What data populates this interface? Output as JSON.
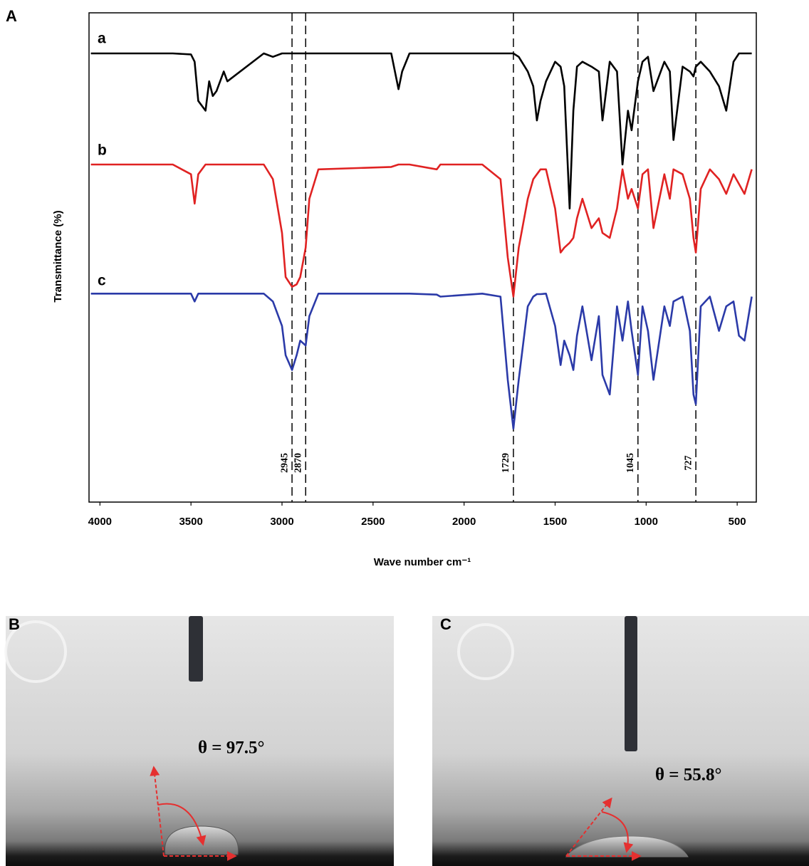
{
  "chart_data": {
    "type": "line",
    "panel_label": "A",
    "xlabel": "Wave number cm⁻¹",
    "ylabel": "Transmittance (%)",
    "xlim": [
      4060,
      395
    ],
    "ylim": [
      0,
      100
    ],
    "xticks": [
      4000,
      3500,
      3000,
      2500,
      2000,
      1500,
      1000,
      500
    ],
    "marker_lines": [
      2945,
      2870,
      1729,
      1045,
      727
    ],
    "x": [
      4050,
      3600,
      3500,
      3480,
      3460,
      3420,
      3400,
      3380,
      3360,
      3320,
      3300,
      3100,
      3050,
      3000,
      2980,
      2945,
      2920,
      2900,
      2870,
      2850,
      2800,
      2400,
      2360,
      2340,
      2300,
      2150,
      2130,
      1900,
      1800,
      1760,
      1729,
      1700,
      1650,
      1620,
      1600,
      1580,
      1550,
      1500,
      1470,
      1450,
      1420,
      1400,
      1380,
      1350,
      1300,
      1260,
      1240,
      1200,
      1160,
      1130,
      1100,
      1080,
      1045,
      1020,
      990,
      960,
      900,
      870,
      850,
      800,
      760,
      740,
      727,
      700,
      650,
      600,
      560,
      520,
      490,
      460,
      420
    ],
    "series": [
      {
        "name": "a",
        "color": "#000000",
        "values": [
          91.7,
          91.7,
          91.5,
          90,
          82,
          80,
          86,
          83,
          84,
          88,
          86,
          91.7,
          91,
          91.7,
          91.7,
          91.7,
          91.7,
          91.7,
          91.7,
          91.7,
          91.7,
          91.7,
          84.4,
          88,
          91.7,
          91.7,
          91.7,
          91.7,
          91.7,
          91.7,
          91.7,
          91,
          88,
          85,
          78,
          82,
          86,
          90,
          89,
          85,
          60,
          80,
          89,
          90,
          89,
          88,
          78,
          90,
          88,
          69,
          80,
          76,
          86,
          90,
          91,
          84,
          90,
          88,
          74,
          89,
          88,
          87,
          89,
          90,
          88,
          85,
          80,
          90,
          91.7,
          91.7,
          91.7
        ]
      },
      {
        "name": "b",
        "color": "#e02222",
        "values": [
          69,
          69,
          67,
          61,
          67,
          69,
          69,
          69,
          69,
          69,
          69,
          69,
          66,
          55,
          46,
          44,
          44.5,
          46,
          52,
          62,
          68,
          68.5,
          69,
          69,
          69,
          68,
          69,
          69,
          66,
          50,
          42,
          52,
          62,
          66,
          67,
          68,
          68,
          60,
          51,
          52,
          53,
          54,
          58,
          62,
          56,
          58,
          55,
          54,
          60,
          68,
          62,
          64,
          60,
          67,
          68,
          56,
          67,
          62,
          68,
          67,
          62,
          54,
          51,
          64,
          68,
          66,
          63,
          67,
          65,
          63,
          68
        ]
      },
      {
        "name": "c",
        "color": "#2b3aa8",
        "values": [
          42.6,
          42.6,
          42.6,
          41,
          42.6,
          42.6,
          42.6,
          42.6,
          42.6,
          42.6,
          42.6,
          42.6,
          41,
          36,
          30,
          27,
          30,
          33,
          32,
          38,
          42.6,
          42.6,
          42.6,
          42.6,
          42.6,
          42.4,
          42,
          42.6,
          42,
          25,
          15,
          25,
          40,
          42,
          42.5,
          42.5,
          42.6,
          36,
          28,
          33,
          30,
          27,
          34,
          40,
          29,
          38,
          26,
          22,
          40,
          33,
          41,
          35,
          26,
          40,
          35,
          25,
          40,
          36,
          41,
          42,
          35,
          22,
          20,
          40,
          42,
          35,
          40,
          41,
          34,
          33,
          42
        ]
      }
    ]
  },
  "photos": [
    {
      "label": "B",
      "annotation": "θ = 97.5°"
    },
    {
      "label": "C",
      "annotation": "θ = 55.8°"
    }
  ]
}
